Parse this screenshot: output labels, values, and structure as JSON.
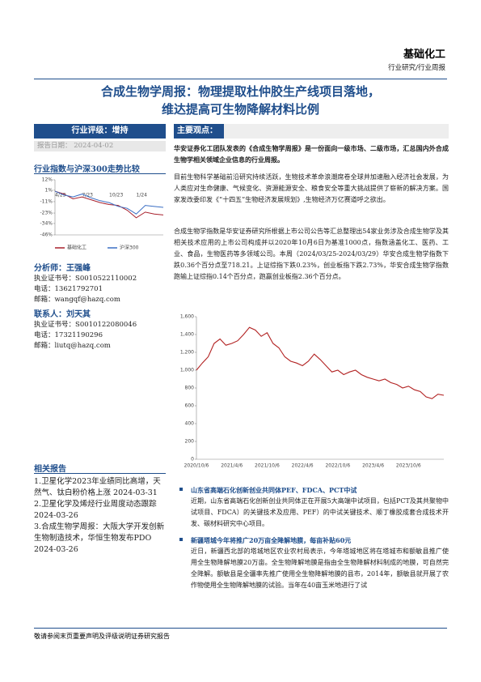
{
  "header": {
    "brand": "基础化工",
    "sub": "行业研究/行业周报"
  },
  "title": [
    "合成生物学周报：物理提取杜仲胶生产线项目落地，",
    "维达提高可生物降解材料比例"
  ],
  "rating": "行业评级：增持",
  "report_date": {
    "label": "报告日期：",
    "value": "2024-04-02"
  },
  "index_heading": "行业指数与沪深300走势比较",
  "analyst": {
    "name": "分析师：王强峰",
    "cert": "执业证书号：S0010522110002",
    "phone": "电话：13621792701",
    "email": "邮箱：wangqf@hazq.com"
  },
  "contact": {
    "name": "联系人：刘天其",
    "cert": "执业证书号：S0010122080046",
    "phone": "电话：17321190296",
    "email": "邮箱：liutq@hazq.com"
  },
  "related": {
    "heading": "相关报告",
    "items": [
      "1.卫星化学2023年业绩同比高增，天然气、钛白粉价格上涨 2024-03-31",
      "2.卫星化学及烯烃行业周度动态跟踪 2024-03-26",
      "3.合成生物学周报：大阪大学开发创新生物制造技术，华恒生物发布PDO 2024-03-26"
    ]
  },
  "main_heading": "主要观点：",
  "paragraphs": [
    "华安证券化工团队发表的《合成生物学周报》是一份面向一级市场、二级市场，汇总国内外合成生物学相关领域企业信息的行业周报。",
    "目前生物科学基础前沿研究持续活跃，生物技术革命浪潮席卷全球并加速融入经济社会发展，为人类应对生命健康、气候变化、资源能源安全、粮食安全等重大挑战提供了崭新的解决方案。国家发改委印发《“十四五”生物经济发展规划》,生物经济万亿赛道呼之欲出。",
    "合成生物学指数是华安证券研究所根据上市公司公告等汇总整理出54家业务涉及合成生物学及其相关技术应用的上市公司构成并以2020年10月6日为基准1000点，指数涵盖化工、医药、工业、食品，生物医药等多领域公司。本周（2024/03/25-2024/03/29）华安合成生物学指数下跌0.36个百分点至718.21。上证综指下跌0.23%，创业板指下跌2.73%，华安合成生物学指数跑输上证综指0.14个百分点，跑赢创业板指2.36个百分点。"
  ],
  "bullets": [
    {
      "title": "山东省高端石化创新创业共同体PEF、FDCA、PCT中试",
      "body": "近期，山东省高端石化创新创业共同体正在开展5大高端中试项目，包括PCT及其共聚物中试项目、FDCA）的关键技术及应用、PEF）的中试关键技术、顺丁橡胶成套合成技术开发、碳材料研究中心项目。"
    },
    {
      "title": "新疆塔城今年将推广20万亩全降解地膜，每亩补贴60元",
      "body": "近日，新疆西北部的塔城地区农业农村局表示，今年塔城地区将在塔城市和额敏县推广使用全生物降解地膜20万亩。全生物降解地膜是指由全生物降解材料制成的地膜，可自然完全降解。额敏县是全疆率先推广使用全生物降解地膜的县市，2014年，额敏县就开展了农作物使用全生物降解地膜的试验。当年在40亩玉米地进行了试"
    }
  ],
  "footer": "敬请参阅末页重要声明及评级说明证券研究报告",
  "chart_data": [
    {
      "type": "line",
      "categories": [
        "4/23",
        null,
        null,
        "7/23",
        null,
        null,
        "10/23",
        null,
        null,
        "1/24",
        null,
        null,
        null
      ],
      "series": [
        {
          "name": "基础化工",
          "color": "#a8202c",
          "values": [
            0,
            -3,
            -8,
            -6,
            -9,
            -12,
            -14,
            -15,
            -20,
            -28,
            -22,
            -24,
            -25
          ]
        },
        {
          "name": "沪深300",
          "color": "#3b6fc4",
          "values": [
            0,
            -4,
            -6,
            -3,
            -7,
            -10,
            -12,
            -16,
            -18,
            -24,
            -15,
            -16,
            -17
          ]
        }
      ],
      "ylim": [
        -46,
        12
      ],
      "yticks": [
        {
          "value": 12,
          "label": "12%"
        },
        {
          "value": 1,
          "label": "1%"
        },
        {
          "value": -11,
          "label": "-11%"
        },
        {
          "value": -23,
          "label": "-23%"
        },
        {
          "value": -34,
          "label": "-34%"
        },
        {
          "value": -46,
          "label": "-46%"
        }
      ],
      "legend": "bottom"
    },
    {
      "type": "line",
      "categories": [
        "2020/10/6",
        null,
        null,
        null,
        null,
        null,
        "2021/4/6",
        null,
        null,
        null,
        null,
        null,
        "2021/10/6",
        null,
        null,
        null,
        null,
        null,
        "2022/4/6",
        null,
        null,
        null,
        null,
        null,
        "2022/10/6",
        null,
        null,
        null,
        null,
        null,
        "2023/4/6",
        null,
        null,
        null,
        null,
        null,
        "2023/10/6",
        null,
        null,
        null,
        null,
        null,
        null
      ],
      "series": [
        {
          "color": "#b22222",
          "values": [
            1000,
            1080,
            1150,
            1300,
            1350,
            1280,
            1300,
            1330,
            1400,
            1480,
            1450,
            1380,
            1420,
            1300,
            1250,
            1150,
            1100,
            1080,
            1050,
            1100,
            1180,
            1120,
            1050,
            980,
            1000,
            950,
            980,
            1000,
            950,
            920,
            900,
            880,
            900,
            860,
            840,
            800,
            820,
            780,
            760,
            700,
            680,
            730,
            718
          ]
        }
      ],
      "ylim": [
        0,
        1600
      ],
      "yticks": [
        0,
        200,
        400,
        600,
        800,
        {
          "value": 1000,
          "label": "1,000"
        },
        {
          "value": 1200,
          "label": "1,200"
        },
        {
          "value": 1400,
          "label": "1,400"
        },
        {
          "value": 1600,
          "label": "1,600"
        }
      ]
    }
  ]
}
